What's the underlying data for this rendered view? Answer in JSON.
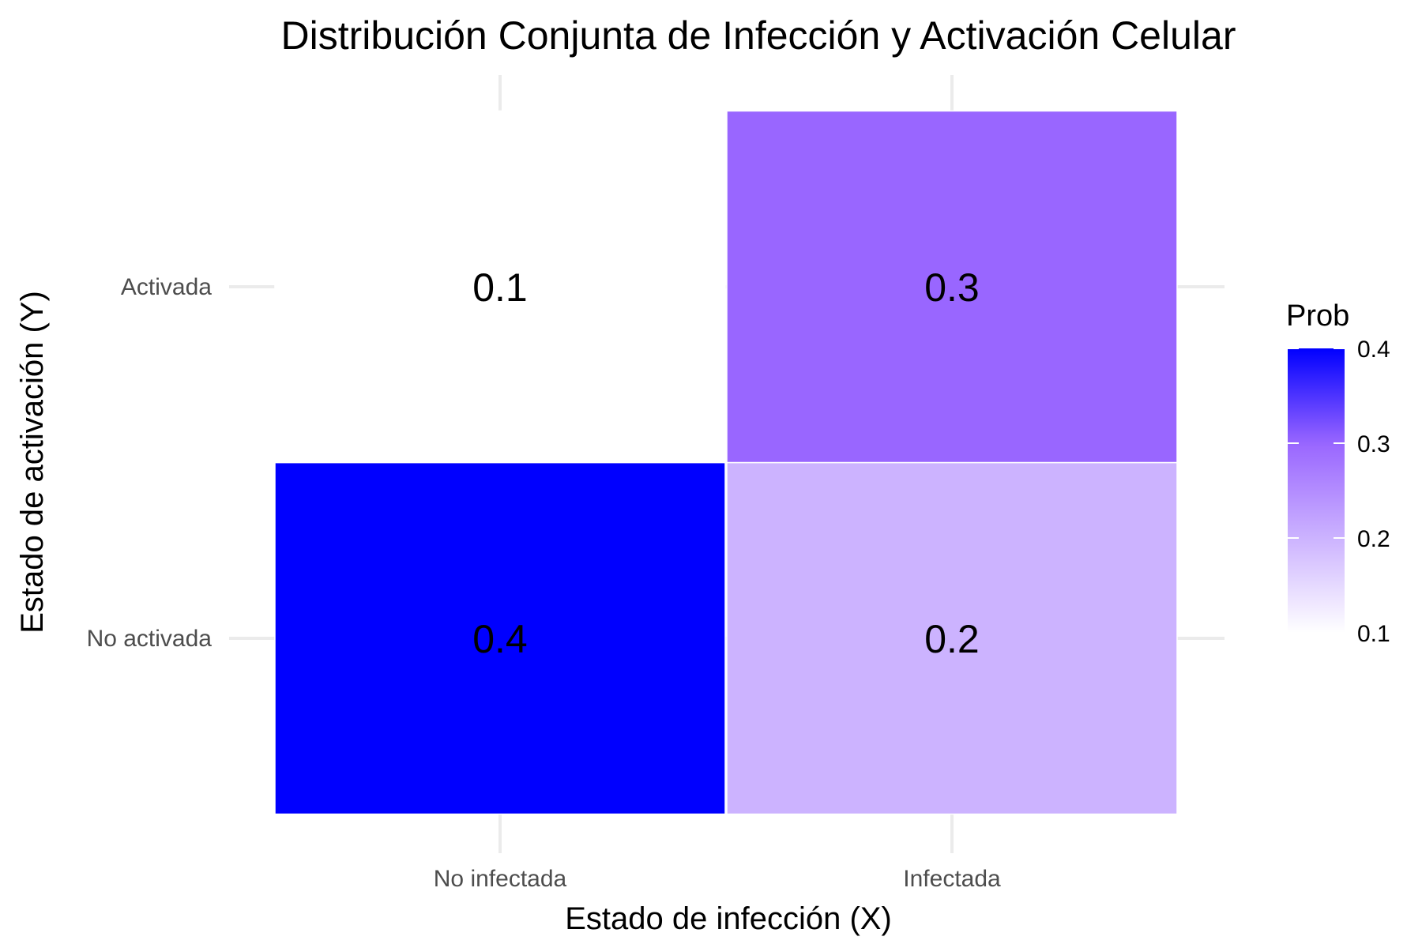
{
  "chart_data": {
    "type": "heatmap",
    "title": "Distribución Conjunta de Infección y Activación Celular",
    "xlabel": "Estado de infección (X)",
    "ylabel": "Estado de activación (Y)",
    "x_categories": [
      "No infectada",
      "Infectada"
    ],
    "y_categories": [
      "No activada",
      "Activada"
    ],
    "cells": [
      {
        "x": "No infectada",
        "y": "No activada",
        "value": 0.4,
        "label": "0.4"
      },
      {
        "x": "No infectada",
        "y": "Activada",
        "value": 0.1,
        "label": "0.1"
      },
      {
        "x": "Infectada",
        "y": "No activada",
        "value": 0.2,
        "label": "0.2"
      },
      {
        "x": "Infectada",
        "y": "Activada",
        "value": 0.3,
        "label": "0.3"
      }
    ],
    "color_scale": {
      "low": "#ffffff",
      "high": "#0000ff",
      "mid": "#9966ff",
      "mid_value": 0.3,
      "domain": [
        0.1,
        0.4
      ]
    },
    "legend": {
      "title": "Prob",
      "ticks": [
        0.1,
        0.2,
        0.3,
        0.4
      ],
      "tick_labels": [
        "0.1",
        "0.2",
        "0.3",
        "0.4"
      ],
      "position": "right"
    },
    "grid": true
  }
}
